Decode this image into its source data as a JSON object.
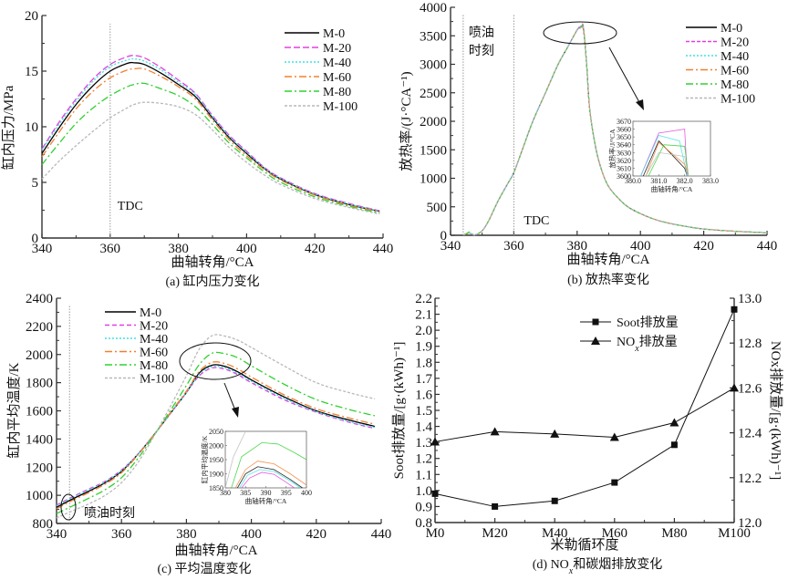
{
  "chart_data": [
    {
      "id": "a",
      "type": "line",
      "caption": "(a) 缸内压力变化",
      "xlabel": "曲轴转角/°CA",
      "ylabel": "缸内压力/MPa",
      "xlim": [
        340,
        440
      ],
      "ylim": [
        0,
        20
      ],
      "xticks": [
        340,
        360,
        380,
        400,
        420,
        440
      ],
      "yticks": [
        0,
        5,
        10,
        15,
        20
      ],
      "legend_position": "top-right",
      "annotations": [
        {
          "text": "TDC",
          "x": 360,
          "type": "vline"
        }
      ],
      "x": [
        340,
        345,
        350,
        355,
        360,
        365,
        367,
        370,
        375,
        380,
        385,
        390,
        395,
        400,
        405,
        410,
        420,
        430,
        439
      ],
      "series": [
        {
          "name": "M-0",
          "color": "#000000",
          "dash": "solid",
          "values": [
            7.6,
            9.9,
            12.0,
            13.7,
            15.0,
            15.7,
            15.75,
            15.6,
            14.8,
            13.8,
            12.7,
            10.8,
            9.0,
            7.6,
            6.3,
            5.3,
            3.9,
            3.0,
            2.4
          ]
        },
        {
          "name": "M-20",
          "color": "#e040e0",
          "dash": "7,3",
          "values": [
            8.0,
            10.4,
            12.5,
            14.3,
            15.6,
            16.3,
            16.4,
            16.2,
            15.3,
            14.2,
            13.0,
            11.0,
            9.2,
            7.8,
            6.4,
            5.4,
            4.0,
            3.1,
            2.45
          ]
        },
        {
          "name": "M-40",
          "color": "#40e0e0",
          "dash": "2,2",
          "values": [
            7.9,
            10.2,
            12.3,
            14.1,
            15.4,
            16.0,
            16.1,
            15.9,
            15.1,
            14.0,
            12.9,
            10.9,
            9.1,
            7.7,
            6.35,
            5.35,
            3.95,
            3.05,
            2.42
          ]
        },
        {
          "name": "M-60",
          "color": "#f08030",
          "dash": "8,3,2,3",
          "values": [
            7.3,
            9.5,
            11.6,
            13.2,
            14.4,
            15.1,
            15.2,
            15.2,
            14.5,
            13.6,
            12.5,
            10.6,
            8.8,
            7.4,
            6.2,
            5.2,
            3.85,
            2.95,
            2.35
          ]
        },
        {
          "name": "M-80",
          "color": "#30d030",
          "dash": "8,3,2,3",
          "values": [
            6.6,
            8.5,
            10.3,
            11.7,
            12.8,
            13.6,
            13.8,
            13.9,
            13.4,
            12.8,
            11.8,
            10.2,
            8.5,
            7.2,
            6.0,
            5.0,
            3.7,
            2.85,
            2.25
          ]
        },
        {
          "name": "M-100",
          "color": "#b8b8b8",
          "dash": "3,2",
          "values": [
            5.3,
            6.9,
            8.3,
            9.6,
            10.8,
            11.7,
            12.0,
            12.2,
            12.1,
            11.8,
            11.1,
            9.7,
            8.1,
            6.8,
            5.7,
            4.8,
            3.55,
            2.75,
            2.15
          ]
        }
      ]
    },
    {
      "id": "b",
      "type": "line",
      "caption": "(b) 放热率变化",
      "xlabel": "曲轴转角/°CA",
      "ylabel": "放热率/(J·°CA⁻¹)",
      "xlim": [
        340,
        440
      ],
      "ylim": [
        0,
        4000
      ],
      "xticks": [
        340,
        360,
        380,
        400,
        420,
        440
      ],
      "yticks": [
        0,
        500,
        1000,
        1500,
        2000,
        2500,
        3000,
        3500,
        4000
      ],
      "legend_position": "top-right",
      "annotations": [
        {
          "text": "喷油时刻",
          "lines": [
            "喷油",
            "时刻"
          ],
          "x": 344,
          "type": "vline"
        },
        {
          "text": "TDC",
          "x": 360,
          "type": "vline"
        }
      ],
      "x": [
        344,
        345,
        346,
        347,
        348,
        350,
        352,
        355,
        358,
        360,
        363,
        366,
        370,
        374,
        377,
        380,
        381,
        382,
        383,
        384,
        386,
        388,
        390,
        393,
        396,
        400,
        405,
        410,
        415,
        420,
        430,
        440
      ],
      "series": [
        {
          "name": "M-0",
          "color": "#000000",
          "dash": "solid",
          "values": [
            10,
            20,
            40,
            15,
            10,
            80,
            250,
            600,
            900,
            1100,
            1550,
            2000,
            2500,
            3000,
            3300,
            3600,
            3645,
            3610,
            3000,
            2200,
            1500,
            1100,
            850,
            650,
            500,
            380,
            270,
            200,
            150,
            110,
            70,
            45
          ]
        },
        {
          "name": "M-20",
          "color": "#e040e0",
          "dash": "4,2",
          "values": [
            10,
            20,
            40,
            15,
            10,
            80,
            250,
            600,
            900,
            1100,
            1550,
            2000,
            2500,
            3000,
            3300,
            3610,
            3655,
            3660,
            3000,
            2200,
            1500,
            1100,
            850,
            650,
            500,
            380,
            270,
            200,
            150,
            110,
            70,
            45
          ]
        },
        {
          "name": "M-40",
          "color": "#40e0e0",
          "dash": "2,2",
          "values": [
            10,
            20,
            40,
            15,
            10,
            80,
            250,
            600,
            900,
            1100,
            1550,
            2000,
            2500,
            3000,
            3300,
            3605,
            3650,
            3640,
            3000,
            2200,
            1500,
            1100,
            850,
            650,
            500,
            380,
            270,
            200,
            150,
            110,
            70,
            45
          ]
        },
        {
          "name": "M-60",
          "color": "#f08030",
          "dash": "8,3,2,3",
          "values": [
            10,
            20,
            40,
            15,
            10,
            80,
            250,
            600,
            900,
            1100,
            1550,
            2000,
            2500,
            3000,
            3300,
            3600,
            3645,
            3620,
            3000,
            2200,
            1500,
            1100,
            850,
            650,
            500,
            380,
            270,
            200,
            150,
            110,
            70,
            45
          ]
        },
        {
          "name": "M-80",
          "color": "#30d030",
          "dash": "8,3,2,3",
          "values": [
            10,
            30,
            60,
            20,
            10,
            80,
            250,
            600,
            900,
            1100,
            1550,
            2000,
            2500,
            3000,
            3300,
            3600,
            3640,
            3640,
            3000,
            2200,
            1500,
            1100,
            850,
            650,
            500,
            380,
            270,
            200,
            150,
            110,
            70,
            45
          ]
        },
        {
          "name": "M-100",
          "color": "#b8b8b8",
          "dash": "3,2",
          "values": [
            10,
            20,
            40,
            15,
            10,
            80,
            250,
            600,
            900,
            1100,
            1550,
            2000,
            2500,
            3000,
            3300,
            3600,
            3630,
            3625,
            3000,
            2200,
            1500,
            1100,
            850,
            650,
            500,
            380,
            270,
            200,
            150,
            110,
            70,
            45
          ]
        }
      ],
      "inset": {
        "xlabel": "曲轴转角/°CA",
        "ylabel": "放热率/J/°CA",
        "xlim": [
          380.0,
          383.0
        ],
        "ylim": [
          3600,
          3670
        ],
        "xticks": [
          "380.0",
          "381.0",
          "382.0",
          "383.0"
        ],
        "yticks": [
          "3600",
          "3610",
          "3620",
          "3630",
          "3640",
          "3650",
          "3660",
          "3670"
        ],
        "series": [
          {
            "name": "M-0",
            "x": [
              380.4,
              381.0,
              382.0,
              382.1
            ],
            "values": [
              3600,
              3645,
              3610,
              3600
            ]
          },
          {
            "name": "M-20",
            "x": [
              380.3,
              381.0,
              382.0,
              382.1
            ],
            "values": [
              3600,
              3655,
              3660,
              3600
            ]
          },
          {
            "name": "M-40",
            "x": [
              380.3,
              381.0,
              381.8,
              382.1
            ],
            "values": [
              3600,
              3652,
              3645,
              3600
            ]
          },
          {
            "name": "M-60",
            "x": [
              380.5,
              381.0,
              382.0,
              382.15
            ],
            "values": [
              3600,
              3643,
              3615,
              3600
            ]
          },
          {
            "name": "M-80",
            "x": [
              380.6,
              381.2,
              382.0,
              382.15
            ],
            "values": [
              3600,
              3640,
              3638,
              3600
            ]
          },
          {
            "name": "M-100",
            "x": [
              380.5,
              381.0,
              382.0,
              382.15
            ],
            "values": [
              3600,
              3630,
              3625,
              3600
            ]
          }
        ]
      }
    },
    {
      "id": "c",
      "type": "line",
      "caption": "(c) 平均温度变化",
      "xlabel": "曲轴转角/°CA",
      "ylabel": "缸内平均温度/K",
      "xlim": [
        340,
        440
      ],
      "ylim": [
        800,
        2400
      ],
      "xticks": [
        340,
        360,
        380,
        400,
        420,
        440
      ],
      "yticks": [
        800,
        1000,
        1200,
        1400,
        1600,
        1800,
        2000,
        2200,
        2400
      ],
      "legend_position": "top-left",
      "annotations": [
        {
          "text": "喷油时刻",
          "x": 344,
          "type": "vline"
        }
      ],
      "x": [
        340,
        345,
        350,
        355,
        360,
        365,
        370,
        375,
        380,
        384,
        388,
        392,
        396,
        400,
        410,
        420,
        430,
        438
      ],
      "series": [
        {
          "name": "M-0",
          "color": "#000000",
          "dash": "solid",
          "values": [
            915,
            975,
            1030,
            1090,
            1170,
            1290,
            1430,
            1580,
            1730,
            1870,
            1925,
            1915,
            1875,
            1820,
            1700,
            1600,
            1535,
            1490
          ]
        },
        {
          "name": "M-20",
          "color": "#e040e0",
          "dash": "5,3",
          "values": [
            930,
            990,
            1045,
            1100,
            1180,
            1290,
            1430,
            1580,
            1730,
            1850,
            1905,
            1895,
            1855,
            1800,
            1680,
            1590,
            1520,
            1475
          ]
        },
        {
          "name": "M-40",
          "color": "#40e0e0",
          "dash": "2,2",
          "values": [
            925,
            985,
            1040,
            1095,
            1175,
            1290,
            1430,
            1580,
            1730,
            1860,
            1915,
            1905,
            1865,
            1810,
            1690,
            1595,
            1525,
            1482
          ]
        },
        {
          "name": "M-60",
          "color": "#f08030",
          "dash": "8,3,2,3",
          "values": [
            905,
            965,
            1020,
            1080,
            1160,
            1285,
            1430,
            1585,
            1740,
            1880,
            1945,
            1935,
            1895,
            1840,
            1715,
            1615,
            1550,
            1505
          ]
        },
        {
          "name": "M-80",
          "color": "#30d030",
          "dash": "8,3,2,3",
          "values": [
            870,
            925,
            980,
            1040,
            1125,
            1260,
            1425,
            1600,
            1780,
            1930,
            2010,
            2005,
            1975,
            1920,
            1790,
            1680,
            1610,
            1565
          ]
        },
        {
          "name": "M-100",
          "color": "#b8b8b8",
          "dash": "3,2",
          "values": [
            840,
            890,
            940,
            1000,
            1090,
            1230,
            1420,
            1630,
            1850,
            2040,
            2135,
            2130,
            2100,
            2050,
            1920,
            1800,
            1730,
            1685
          ]
        }
      ],
      "inset": {
        "xlabel": "曲轴转角/°CA",
        "ylabel": "缸内平均温度/K",
        "xlim": [
          380,
          400
        ],
        "ylim": [
          1850,
          2050
        ],
        "xticks": [
          "380",
          "385",
          "390",
          "395",
          "400"
        ],
        "yticks": [
          "1850",
          "1900",
          "1950",
          "2000",
          "2050"
        ],
        "series": [
          {
            "name": "M-0",
            "x": [
              383,
              385,
              388,
              392,
              396,
              399
            ],
            "values": [
              1850,
              1900,
              1925,
              1915,
              1880,
              1850
            ]
          },
          {
            "name": "M-20",
            "x": [
              384,
              386,
              389,
              392,
              395,
              397
            ],
            "values": [
              1850,
              1885,
              1905,
              1898,
              1870,
              1850
            ]
          },
          {
            "name": "M-40",
            "x": [
              383.5,
              385.5,
              388.5,
              392,
              396,
              398.5
            ],
            "values": [
              1850,
              1895,
              1915,
              1908,
              1875,
              1850
            ]
          },
          {
            "name": "M-60",
            "x": [
              382.5,
              385,
              388,
              392,
              396,
              400
            ],
            "values": [
              1850,
              1915,
              1945,
              1935,
              1900,
              1860
            ]
          },
          {
            "name": "M-80",
            "x": [
              381.5,
              384,
              389,
              393,
              397,
              400
            ],
            "values": [
              1850,
              1960,
              2010,
              2005,
              1975,
              1950
            ]
          },
          {
            "name": "M-100",
            "x": [
              380,
              382,
              385
            ],
            "values": [
              1850,
              1960,
              2050
            ]
          }
        ]
      }
    },
    {
      "id": "d",
      "type": "line",
      "caption": "(d) NOx和碳烟排放变化",
      "caption_parts": [
        "(d) NO",
        "x",
        "和碳烟排放变化"
      ],
      "xlabel": "米勒循环度",
      "ylabel_left": "Soot排放量/[g·(kWh)⁻¹]",
      "ylabel_right": "NOx排放量/[g·(kWh)⁻¹]",
      "categories": [
        "M0",
        "M20",
        "M40",
        "M60",
        "M80",
        "M100"
      ],
      "ylim_left": [
        0.8,
        2.2
      ],
      "ylim_right": [
        12.0,
        13.0
      ],
      "yticks_left": [
        "0.8",
        "0.9",
        "1.0",
        "1.1",
        "1.2",
        "1.3",
        "1.4",
        "1.5",
        "1.6",
        "1.7",
        "1.8",
        "1.9",
        "2.0",
        "2.1",
        "2.2"
      ],
      "yticks_right": [
        "12.0",
        "12.2",
        "12.4",
        "12.6",
        "12.8",
        "13.0"
      ],
      "legend_position": "top-center",
      "series": [
        {
          "name": "Soot排放量",
          "axis": "left",
          "marker": "square",
          "color": "#111111",
          "values": [
            0.98,
            0.9,
            0.935,
            1.05,
            1.285,
            2.13
          ]
        },
        {
          "name": "NOx排放量",
          "name_parts": [
            "NO",
            "x",
            "排放量"
          ],
          "axis": "right",
          "marker": "triangle",
          "color": "#111111",
          "values": [
            12.36,
            12.405,
            12.395,
            12.38,
            12.445,
            12.6
          ]
        }
      ]
    }
  ]
}
